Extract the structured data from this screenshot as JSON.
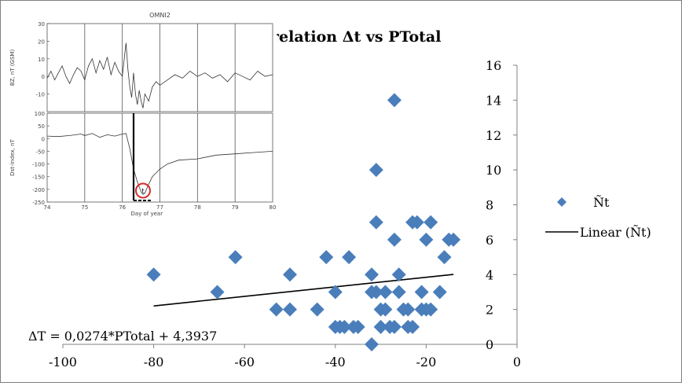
{
  "chart_data": [
    {
      "type": "scatter",
      "title": "Correlation Δt vs PTotal",
      "title_visible_part": "relation Δt vs PTotal",
      "xlim": [
        -100,
        0
      ],
      "ylim": [
        0,
        16
      ],
      "x_ticks": [
        -100,
        -80,
        -60,
        -40,
        -20,
        0
      ],
      "y_ticks": [
        0,
        2,
        4,
        6,
        8,
        10,
        12,
        14,
        16
      ],
      "y_axis_side": "right",
      "grid": false,
      "legend_position": "right",
      "series": [
        {
          "name": "Ñt",
          "marker": "diamond",
          "color": "#4a7ebb",
          "points": [
            [
              -80,
              4
            ],
            [
              -66,
              3
            ],
            [
              -62,
              5
            ],
            [
              -53,
              2
            ],
            [
              -50,
              2
            ],
            [
              -50,
              4
            ],
            [
              -44,
              2
            ],
            [
              -42,
              5
            ],
            [
              -40,
              3
            ],
            [
              -40,
              1
            ],
            [
              -39,
              1
            ],
            [
              -38,
              1
            ],
            [
              -37,
              5
            ],
            [
              -36,
              1
            ],
            [
              -35,
              1
            ],
            [
              -32,
              0
            ],
            [
              -32,
              3
            ],
            [
              -32,
              4
            ],
            [
              -31,
              3
            ],
            [
              -31,
              10
            ],
            [
              -31,
              7
            ],
            [
              -30,
              2
            ],
            [
              -30,
              1
            ],
            [
              -29,
              2
            ],
            [
              -29,
              3
            ],
            [
              -28,
              1
            ],
            [
              -27,
              1
            ],
            [
              -27,
              14
            ],
            [
              -27,
              6
            ],
            [
              -26,
              4
            ],
            [
              -26,
              3
            ],
            [
              -25,
              2
            ],
            [
              -24,
              1
            ],
            [
              -24,
              2
            ],
            [
              -23,
              7
            ],
            [
              -23,
              1
            ],
            [
              -22,
              7
            ],
            [
              -21,
              2
            ],
            [
              -21,
              3
            ],
            [
              -20,
              2
            ],
            [
              -20,
              6
            ],
            [
              -19,
              2
            ],
            [
              -19,
              7
            ],
            [
              -17,
              3
            ],
            [
              -16,
              5
            ],
            [
              -15,
              6
            ],
            [
              -14,
              6
            ]
          ]
        },
        {
          "name": "Linear (Ñt)",
          "kind": "trendline",
          "color": "#000000",
          "slope": 0.0274,
          "intercept": 4.3937,
          "x_range": [
            -80,
            -14
          ]
        }
      ],
      "annotation": "ΔT = 0,0274*PTotal + 4,3937"
    },
    {
      "type": "line",
      "title": "OMNI2",
      "panels": [
        {
          "ylabel": "BZ, nT (GSM)",
          "ylim": [
            -20,
            30
          ],
          "y_ticks": [
            -10,
            0,
            10,
            20,
            30
          ],
          "y_tick_labels": [
            "-10",
            "0",
            "10",
            "20",
            "30"
          ]
        },
        {
          "ylabel": "Dst-index, nT",
          "ylim": [
            -250,
            100
          ],
          "y_ticks": [
            -250,
            -200,
            -150,
            -100,
            -50,
            0,
            50,
            100
          ],
          "y_tick_labels": [
            "-250",
            "-200",
            "-150",
            "-100",
            "-50",
            "0",
            "50",
            "100"
          ],
          "annotation": "t"
        }
      ],
      "xlabel": "Day of year",
      "xlim": [
        74,
        80
      ],
      "x_ticks": [
        74,
        75,
        76,
        77,
        78,
        79,
        80
      ],
      "x_tick_labels": [
        "74",
        "75",
        "76",
        "77",
        "78",
        "79",
        "80"
      ],
      "series": [
        {
          "name": "BZ",
          "x": [
            74.0,
            74.1,
            74.2,
            74.3,
            74.4,
            74.5,
            74.6,
            74.7,
            74.8,
            74.9,
            75.0,
            75.1,
            75.2,
            75.3,
            75.4,
            75.5,
            75.6,
            75.7,
            75.8,
            75.9,
            76.0,
            76.05,
            76.1,
            76.15,
            76.2,
            76.25,
            76.3,
            76.35,
            76.4,
            76.45,
            76.5,
            76.55,
            76.6,
            76.7,
            76.8,
            76.9,
            77.0,
            77.2,
            77.4,
            77.6,
            77.8,
            78.0,
            78.2,
            78.4,
            78.6,
            78.8,
            79.0,
            79.2,
            79.4,
            79.6,
            79.8,
            80.0
          ],
          "y": [
            -1,
            3,
            -2,
            2,
            6,
            0,
            -4,
            1,
            5,
            3,
            -2,
            6,
            10,
            2,
            9,
            4,
            11,
            1,
            8,
            3,
            0,
            10,
            19,
            4,
            -6,
            -12,
            2,
            -10,
            -16,
            -8,
            -14,
            -18,
            -10,
            -14,
            -6,
            -3,
            -5,
            -2,
            1,
            -1,
            3,
            0,
            2,
            -1,
            1,
            -3,
            2,
            0,
            -2,
            3,
            0,
            1
          ]
        },
        {
          "name": "Dst",
          "x": [
            74.0,
            74.3,
            74.6,
            74.9,
            75.0,
            75.2,
            75.4,
            75.6,
            75.8,
            76.0,
            76.1,
            76.2,
            76.3,
            76.4,
            76.5,
            76.55,
            76.6,
            76.7,
            76.8,
            77.0,
            77.2,
            77.5,
            78.0,
            78.5,
            79.0,
            79.5,
            80.0
          ],
          "y": [
            10,
            8,
            12,
            18,
            12,
            20,
            5,
            15,
            10,
            18,
            20,
            -40,
            -120,
            -170,
            -210,
            -220,
            -215,
            -180,
            -150,
            -120,
            -100,
            -85,
            -80,
            -65,
            -60,
            -55,
            -50
          ]
        }
      ]
    }
  ]
}
